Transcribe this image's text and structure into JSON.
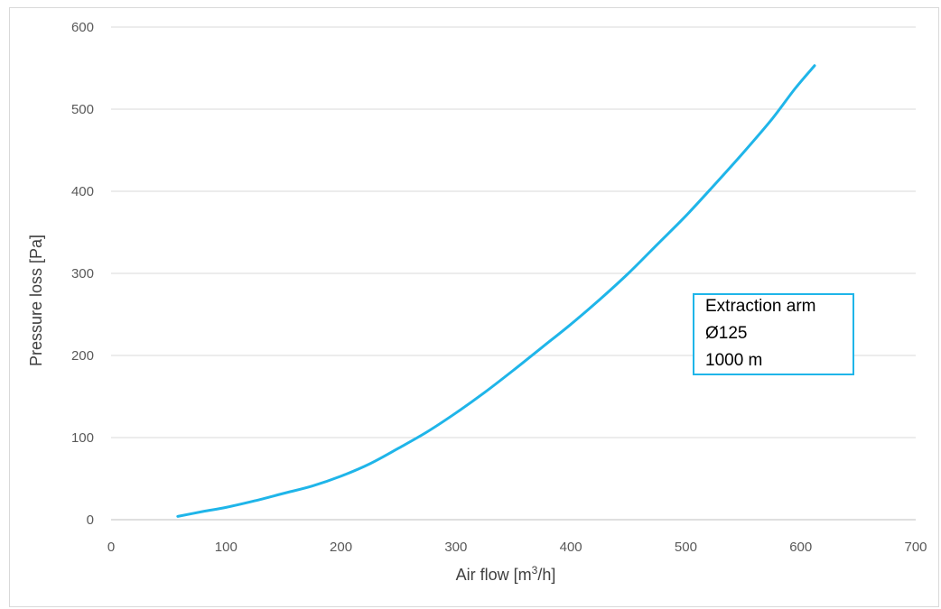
{
  "chart_data": {
    "type": "line",
    "xlabel": "Air flow [m³/h]",
    "xlabel_parts": {
      "pre": "Air flow [m",
      "sup": "3",
      "post": "/h]"
    },
    "ylabel": "Pressure loss [Pa]",
    "xlim": [
      0,
      700
    ],
    "ylim": [
      0,
      600
    ],
    "xticks": [
      "0",
      "100",
      "200",
      "300",
      "400",
      "500",
      "600",
      "700"
    ],
    "yticks": [
      "0",
      "100",
      "200",
      "300",
      "400",
      "500",
      "600"
    ],
    "grid": "horizontal",
    "series": [
      {
        "color": "#1fb5e9",
        "points": [
          [
            58,
            4
          ],
          [
            80,
            10
          ],
          [
            100,
            15
          ],
          [
            125,
            23
          ],
          [
            150,
            32
          ],
          [
            175,
            41
          ],
          [
            200,
            53
          ],
          [
            225,
            68
          ],
          [
            250,
            87
          ],
          [
            275,
            107
          ],
          [
            300,
            130
          ],
          [
            325,
            155
          ],
          [
            350,
            182
          ],
          [
            375,
            210
          ],
          [
            400,
            238
          ],
          [
            425,
            268
          ],
          [
            450,
            300
          ],
          [
            475,
            335
          ],
          [
            500,
            370
          ],
          [
            525,
            408
          ],
          [
            550,
            447
          ],
          [
            575,
            488
          ],
          [
            595,
            525
          ],
          [
            612,
            553
          ]
        ]
      }
    ],
    "annotation": {
      "lines": [
        "Extraction arm",
        "Ø125",
        "1000 m"
      ],
      "border_color": "#1fb5e9"
    }
  }
}
